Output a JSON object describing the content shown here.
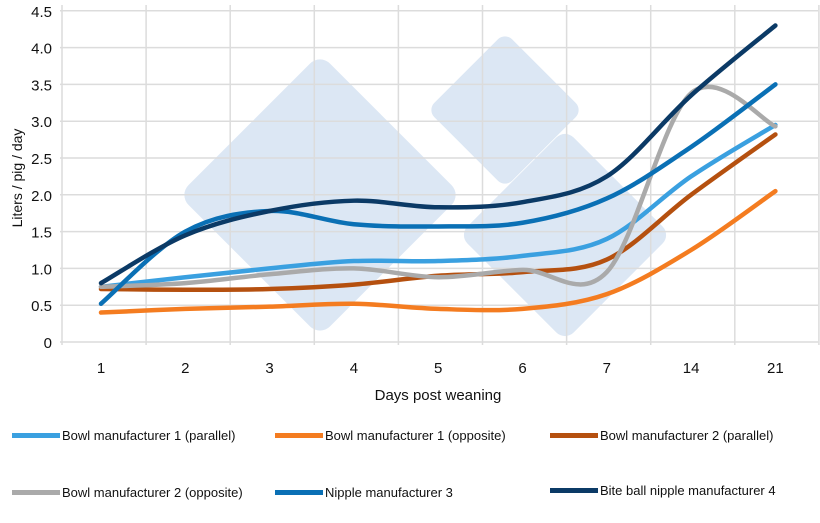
{
  "chart_data": {
    "type": "line",
    "xlabel": "Days post weaning",
    "ylabel": "Liters / pig / day",
    "categories": [
      "1",
      "2",
      "3",
      "4",
      "5",
      "6",
      "7",
      "14",
      "21"
    ],
    "yticks": [
      "0",
      "0.5",
      "1.0",
      "1.5",
      "2.0",
      "2.5",
      "3.0",
      "3.5",
      "4.0",
      "4.5"
    ],
    "ylim": [
      0,
      4.5
    ],
    "grid": true,
    "legend_position": "bottom",
    "series": [
      {
        "name": "Bowl manufacturer 1 (parallel)",
        "color": "#3aa0e0",
        "values": [
          0.75,
          0.88,
          1.0,
          1.1,
          1.1,
          1.17,
          1.4,
          2.25,
          2.95
        ]
      },
      {
        "name": "Bowl manufacturer 1 (opposite)",
        "color": "#f47c20",
        "values": [
          0.4,
          0.45,
          0.48,
          0.52,
          0.45,
          0.45,
          0.65,
          1.25,
          2.05
        ]
      },
      {
        "name": "Bowl manufacturer 2 (parallel)",
        "color": "#b5500f",
        "values": [
          0.72,
          0.71,
          0.72,
          0.78,
          0.9,
          0.95,
          1.12,
          2.0,
          2.82
        ]
      },
      {
        "name": "Bowl manufacturer 2 (opposite)",
        "color": "#aaaaaa",
        "values": [
          0.75,
          0.8,
          0.92,
          1.0,
          0.88,
          0.98,
          0.95,
          3.38,
          2.93
        ]
      },
      {
        "name": "Nipple manufacturer 3",
        "color": "#0a70b5",
        "values": [
          0.52,
          1.5,
          1.78,
          1.6,
          1.57,
          1.62,
          1.95,
          2.65,
          3.5
        ]
      },
      {
        "name": "Bite ball nipple manufacturer 4",
        "color": "#0b3a66",
        "values": [
          0.8,
          1.45,
          1.78,
          1.92,
          1.83,
          1.9,
          2.25,
          3.35,
          4.3
        ]
      }
    ]
  }
}
